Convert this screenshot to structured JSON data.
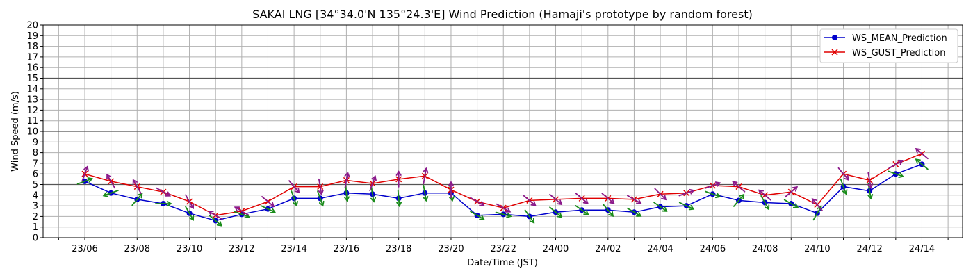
{
  "chart_data": {
    "type": "line",
    "title": "SAKAI LNG [34°34.0'N 135°24.3'E] Wind Prediction (Hamaji's prototype by random forest)",
    "xlabel": "Date/Time (JST)",
    "ylabel": "Wind Speed (m/s)",
    "ylim": [
      0,
      20
    ],
    "yticks": [
      0,
      1,
      2,
      3,
      4,
      5,
      6,
      7,
      8,
      9,
      10,
      11,
      12,
      13,
      14,
      15,
      16,
      17,
      18,
      19,
      20
    ],
    "grid": true,
    "reference_lines": [
      5,
      10,
      15
    ],
    "legend_position": "top-right",
    "x_tick_labels": [
      "23/06",
      "23/08",
      "23/10",
      "23/12",
      "23/14",
      "23/16",
      "23/18",
      "23/20",
      "23/22",
      "24/00",
      "24/02",
      "24/04",
      "24/06",
      "24/08",
      "24/10",
      "24/12",
      "24/14"
    ],
    "x": [
      "23/06",
      "23/07",
      "23/08",
      "23/09",
      "23/10",
      "23/11",
      "23/12",
      "23/13",
      "23/14",
      "23/15",
      "23/16",
      "23/17",
      "23/18",
      "23/19",
      "23/20",
      "23/21",
      "23/22",
      "23/23",
      "24/00",
      "24/01",
      "24/02",
      "24/03",
      "24/04",
      "24/05",
      "24/06",
      "24/07",
      "24/08",
      "24/09",
      "24/10",
      "24/11",
      "24/12",
      "24/13",
      "24/14"
    ],
    "series": [
      {
        "name": "WS_MEAN_Prediction",
        "color": "#0000cc",
        "marker": "circle",
        "values": [
          5.3,
          4.2,
          3.6,
          3.2,
          2.3,
          1.6,
          2.2,
          2.7,
          3.7,
          3.7,
          4.2,
          4.1,
          3.7,
          4.2,
          4.2,
          2.1,
          2.2,
          2.0,
          2.4,
          2.6,
          2.6,
          2.4,
          2.9,
          3.0,
          4.1,
          3.5,
          3.3,
          3.2,
          2.3,
          4.8,
          4.4,
          6.0,
          6.9
        ]
      },
      {
        "name": "WS_GUST_Prediction",
        "color": "#e00000",
        "marker": "x",
        "values": [
          6.0,
          5.3,
          4.8,
          4.3,
          3.4,
          2.1,
          2.5,
          3.4,
          4.8,
          4.8,
          5.4,
          5.1,
          5.5,
          5.8,
          4.5,
          3.4,
          2.8,
          3.5,
          3.6,
          3.7,
          3.7,
          3.6,
          4.1,
          4.2,
          4.9,
          4.8,
          4.0,
          4.3,
          3.1,
          6.0,
          5.4,
          6.9,
          7.9
        ]
      }
    ],
    "wind_arrows": {
      "mean_color": "#1a8c1a",
      "gust_color": "#8b1a8b",
      "mean_angles_deg": [
        -20,
        -200,
        -50,
        0,
        60,
        40,
        20,
        25,
        70,
        70,
        85,
        80,
        85,
        80,
        80,
        30,
        15,
        55,
        40,
        35,
        50,
        30,
        35,
        25,
        20,
        -50,
        60,
        30,
        -60,
        70,
        80,
        20,
        -140
      ],
      "gust_angles_deg": [
        -70,
        -120,
        -120,
        30,
        60,
        210,
        210,
        40,
        50,
        80,
        -80,
        -70,
        -90,
        -80,
        -90,
        30,
        30,
        40,
        40,
        40,
        40,
        30,
        45,
        -20,
        -20,
        -140,
        -140,
        -40,
        -130,
        50,
        80,
        -30,
        -140
      ]
    }
  }
}
